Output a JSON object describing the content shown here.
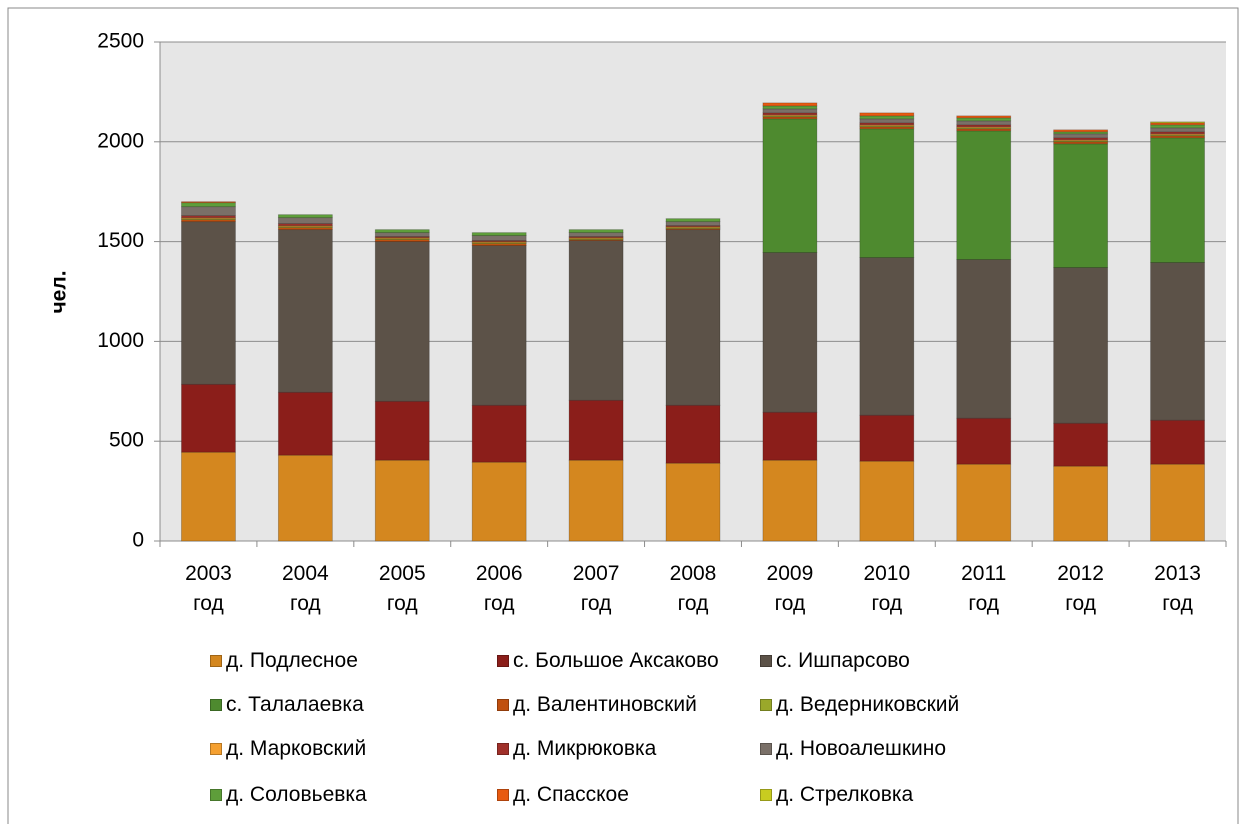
{
  "chart_data": {
    "type": "stacked_bar",
    "y_label": "чел.",
    "categories": [
      "2003 год",
      "2004 год",
      "2005 год",
      "2006 год",
      "2007 год",
      "2008 год",
      "2009 год",
      "2010 год",
      "2011 год",
      "2012 год",
      "2013 год"
    ],
    "ylim": [
      0,
      2500
    ],
    "yticks": [
      0,
      500,
      1000,
      1500,
      2000,
      2500
    ],
    "grid": true,
    "series": [
      {
        "name": "д. Подлесное",
        "color": "#d4871f",
        "values": [
          445,
          430,
          405,
          395,
          405,
          390,
          405,
          400,
          385,
          375,
          385
        ]
      },
      {
        "name": "с. Большое Аксаково",
        "color": "#8b1e1a",
        "values": [
          340,
          315,
          295,
          285,
          300,
          290,
          240,
          230,
          230,
          215,
          220
        ]
      },
      {
        "name": "с. Ишпарсово",
        "color": "#5c5248",
        "values": [
          815,
          815,
          800,
          800,
          800,
          880,
          800,
          790,
          795,
          780,
          790
        ]
      },
      {
        "name": "с. Талалаевка",
        "color": "#4e8a2f",
        "values": [
          0,
          0,
          0,
          0,
          0,
          0,
          670,
          645,
          645,
          620,
          625
        ]
      },
      {
        "name": "д. Валентиновский",
        "color": "#c0500f",
        "values": [
          10,
          10,
          10,
          10,
          5,
          5,
          10,
          10,
          10,
          10,
          10
        ]
      },
      {
        "name": "д. Ведерниковский",
        "color": "#9aa82a",
        "values": [
          5,
          5,
          5,
          5,
          5,
          5,
          5,
          5,
          5,
          5,
          5
        ]
      },
      {
        "name": "д. Марковский",
        "color": "#f5a030",
        "values": [
          5,
          5,
          5,
          5,
          5,
          5,
          5,
          5,
          5,
          5,
          5
        ]
      },
      {
        "name": "д. Микрюковка",
        "color": "#a0302a",
        "values": [
          10,
          10,
          5,
          5,
          5,
          5,
          10,
          10,
          10,
          10,
          10
        ]
      },
      {
        "name": "д. Новоалешкино",
        "color": "#7a7068",
        "values": [
          45,
          30,
          20,
          25,
          20,
          20,
          20,
          20,
          20,
          20,
          20
        ]
      },
      {
        "name": "д. Соловьевка",
        "color": "#5e9e3a",
        "values": [
          20,
          15,
          15,
          15,
          15,
          15,
          15,
          15,
          15,
          10,
          15
        ]
      },
      {
        "name": "д. Спасское",
        "color": "#e85a10",
        "values": [
          5,
          0,
          0,
          0,
          0,
          0,
          15,
          15,
          10,
          10,
          10
        ]
      },
      {
        "name": "д. Стрелковка",
        "color": "#c8cc20",
        "values": [
          0,
          0,
          0,
          0,
          0,
          0,
          0,
          0,
          0,
          0,
          5
        ]
      }
    ]
  }
}
